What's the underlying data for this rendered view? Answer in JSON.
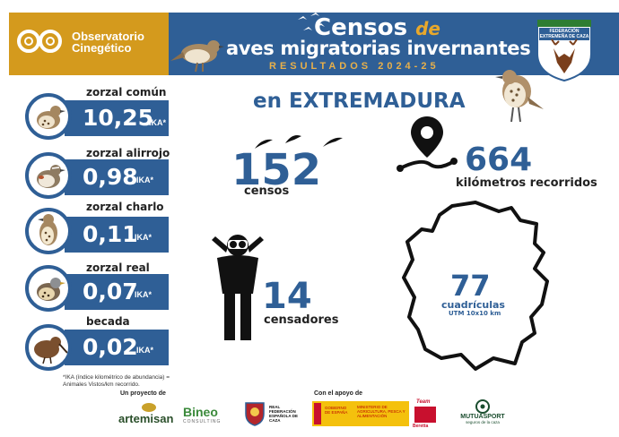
{
  "header": {
    "org_name_line1": "Observatorio",
    "org_name_line2": "Cinegético",
    "title_word": "Censos",
    "title_de": "de",
    "title_line2": "aves migratorias invernantes",
    "title_line3": "RESULTADOS 2024-25",
    "federation_text": "FEDERACIÓN EXTREMEÑA DE CAZA"
  },
  "region": "en EXTREMADURA",
  "species": [
    {
      "name": "zorzal común",
      "value": "10,25",
      "unit": "IKA*"
    },
    {
      "name": "zorzal alirrojo",
      "value": "0,98",
      "unit": "IKA*"
    },
    {
      "name": "zorzal charlo",
      "value": "0,11",
      "unit": "IKA*"
    },
    {
      "name": "zorzal real",
      "value": "0,07",
      "unit": "IKA*"
    },
    {
      "name": "becada",
      "value": "0,02",
      "unit": "IKA*"
    }
  ],
  "footnote": "*IKA (índice kilométrico de abundancia) = Animales Vistos/km recorrido.",
  "stats": {
    "censos_value": "152",
    "censos_label": "censos",
    "km_value": "664",
    "km_label": "kilómetros recorridos",
    "censadores_value": "14",
    "censadores_label": "censadores",
    "cuadriculas_value": "77",
    "cuadriculas_label": "cuadrículas",
    "cuadriculas_sub": "UTM 10x10 km"
  },
  "footer": {
    "project_label": "Un proyecto de",
    "support_label": "Con el apoyo de",
    "logo_artemisan": "artemisan",
    "logo_bineo": "Bineo",
    "logo_bineo_sub": "CONSULTING",
    "logo_rfec": "REAL FEDERACIÓN ESPAÑOLA DE CAZA",
    "logo_gobierno": "GOBIERNO DE ESPAÑA",
    "logo_ministerio": "MINISTERIO DE AGRICULTURA, PESCA Y ALIMENTACIÓN",
    "logo_team": "Team",
    "logo_beretta": "Beretta",
    "logo_mutua": "MUTUASPORT",
    "logo_mutua_sub": "seguros de la caza"
  },
  "colors": {
    "blue": "#2f5f96",
    "gold": "#d49a1d",
    "dark": "#111111"
  }
}
